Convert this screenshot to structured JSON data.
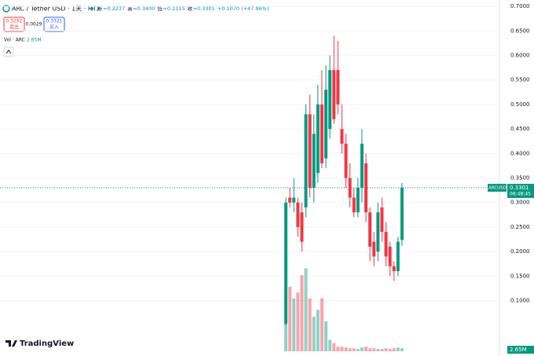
{
  "header": {
    "symbol": "ARC / Tether USD · 1天 · HTX",
    "ohlc": [
      {
        "label": "开",
        "value": "=0.2237"
      },
      {
        "label": "高",
        "value": "=0.3400"
      },
      {
        "label": "低",
        "value": "=0.2115"
      },
      {
        "label": "收",
        "value": "=0.3301"
      }
    ],
    "change": "+0.1070 (+47.96%)",
    "sell": {
      "price": "0.3292",
      "label": "卖出"
    },
    "spread": "0.0029",
    "buy": {
      "price": "0.3321",
      "label": "买入"
    },
    "volume_legend": "Vol · ARC",
    "volume_value": "2.65M"
  },
  "logo": "TradingView",
  "chart_data": {
    "type": "candlestick",
    "up_color": "#089981",
    "down_color": "#f23645",
    "open": [
      0.053,
      0.31,
      0.3,
      0.3,
      0.28,
      0.29,
      0.48,
      0.33,
      0.36,
      0.5,
      0.39,
      0.45,
      0.57,
      0.57,
      0.45,
      0.42,
      0.35,
      0.31,
      0.28,
      0.33,
      0.38,
      0.28,
      0.22,
      0.2,
      0.29,
      0.24,
      0.21,
      0.17,
      0.16,
      0.2237
    ],
    "high": [
      0.31,
      0.33,
      0.35,
      0.31,
      0.3,
      0.5,
      0.52,
      0.48,
      0.54,
      0.57,
      0.58,
      0.6,
      0.64,
      0.63,
      0.5,
      0.44,
      0.38,
      0.33,
      0.35,
      0.45,
      0.4,
      0.29,
      0.24,
      0.3,
      0.31,
      0.26,
      0.22,
      0.18,
      0.23,
      0.34
    ],
    "low": [
      0.05,
      0.29,
      0.28,
      0.23,
      0.2,
      0.27,
      0.31,
      0.3,
      0.34,
      0.37,
      0.37,
      0.43,
      0.46,
      0.48,
      0.4,
      0.33,
      0.29,
      0.27,
      0.27,
      0.3,
      0.26,
      0.18,
      0.17,
      0.18,
      0.22,
      0.17,
      0.15,
      0.14,
      0.15,
      0.2115
    ],
    "close": [
      0.3,
      0.3,
      0.31,
      0.25,
      0.22,
      0.48,
      0.33,
      0.44,
      0.5,
      0.38,
      0.53,
      0.57,
      0.47,
      0.5,
      0.42,
      0.35,
      0.31,
      0.28,
      0.33,
      0.42,
      0.28,
      0.21,
      0.19,
      0.28,
      0.24,
      0.19,
      0.17,
      0.16,
      0.22,
      0.3301
    ],
    "volume": [
      30,
      56,
      46,
      51,
      66,
      72,
      46,
      30,
      36,
      46,
      26,
      10,
      7,
      4,
      4,
      3.3,
      2.6,
      2.6,
      2,
      3.3,
      4,
      2.6,
      2.6,
      2,
      2,
      2.6,
      2,
      2.6,
      3.3,
      2.65
    ],
    "volume_value_labels": [
      null,
      null,
      null,
      null,
      null,
      null,
      null,
      null,
      null,
      null,
      null,
      null,
      null,
      null,
      null,
      null,
      null,
      null,
      null,
      null,
      null,
      null,
      null,
      null,
      null,
      null,
      null,
      null,
      null,
      "2.65M"
    ],
    "ylim": [
      -0.013,
      0.713
    ],
    "vol_ylim": [
      0,
      75
    ],
    "yticks": [
      {
        "value": 0.7,
        "label": "0.7000"
      },
      {
        "value": 0.65,
        "label": "0.6500"
      },
      {
        "value": 0.6,
        "label": "0.6000"
      },
      {
        "value": 0.55,
        "label": "0.5500"
      },
      {
        "value": 0.5,
        "label": "0.5000"
      },
      {
        "value": 0.45,
        "label": "0.4500"
      },
      {
        "value": 0.4,
        "label": "0.4000"
      },
      {
        "value": 0.35,
        "label": "0.3500"
      },
      {
        "value": 0.3,
        "label": "0.3000"
      },
      {
        "value": 0.25,
        "label": "0.2500"
      },
      {
        "value": 0.2,
        "label": "0.2000"
      },
      {
        "value": 0.15,
        "label": "0.1500"
      },
      {
        "value": 0.1,
        "label": "0.1000"
      }
    ],
    "grid": true,
    "last_price": {
      "value": 0.3301,
      "label": "0.3301",
      "time": "06:48:45",
      "symbol": "ARCUSDT"
    }
  }
}
